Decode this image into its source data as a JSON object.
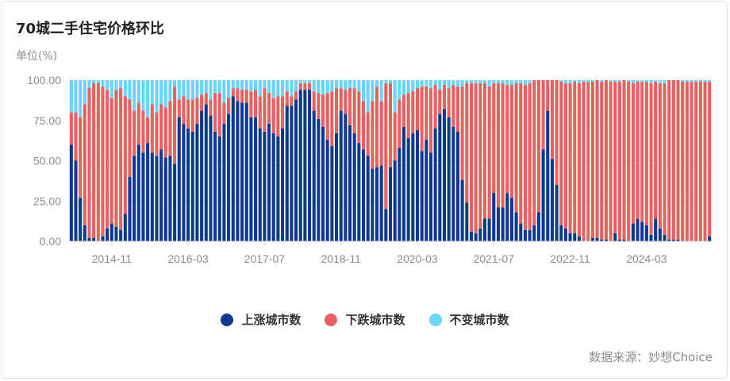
{
  "title": "70城二手住宅价格环比",
  "unit_label": "单位(%)",
  "source": "数据来源：妙想Choice",
  "legend": [
    {
      "label": "上涨城市数",
      "color": "#0d3a8f"
    },
    {
      "label": "下跌城市数",
      "color": "#e8605f"
    },
    {
      "label": "不变城市数",
      "color": "#68d5fb"
    }
  ],
  "chart_data": {
    "type": "bar",
    "stacked": true,
    "title": "70城二手住宅价格环比",
    "ylabel": "单位(%)",
    "ylim": [
      0,
      100
    ],
    "yticks": [
      "0.00",
      "25.00",
      "50.00",
      "75.00",
      "100.00"
    ],
    "xticks": [
      "2014-11",
      "2016-03",
      "2017-07",
      "2018-11",
      "2020-03",
      "2021-07",
      "2022-11",
      "2024-03"
    ],
    "xticks_index": [
      9,
      26,
      43,
      60,
      77,
      94,
      111,
      128
    ],
    "series": [
      {
        "name": "上涨城市数",
        "color": "#0d3a8f",
        "values": [
          60,
          50,
          27,
          10,
          2,
          2,
          0,
          3,
          8,
          11,
          9,
          7,
          17,
          40,
          53,
          60,
          55,
          61,
          55,
          53,
          57,
          52,
          53,
          48,
          77,
          73,
          70,
          68,
          73,
          81,
          85,
          78,
          68,
          65,
          73,
          79,
          90,
          87,
          86,
          86,
          77,
          77,
          70,
          68,
          73,
          67,
          65,
          70,
          84,
          84,
          88,
          94,
          94,
          94,
          81,
          76,
          71,
          63,
          59,
          67,
          81,
          79,
          72,
          67,
          61,
          57,
          53,
          45,
          46,
          47,
          20,
          46,
          50,
          58,
          71,
          64,
          67,
          69,
          56,
          63,
          55,
          70,
          79,
          82,
          77,
          71,
          68,
          38,
          24,
          6,
          5,
          8,
          14,
          14,
          30,
          21,
          21,
          30,
          27,
          18,
          11,
          7,
          7,
          10,
          18,
          57,
          81,
          51,
          35,
          10,
          8,
          5,
          5,
          3,
          0,
          0,
          2,
          2,
          1,
          1,
          0,
          5,
          1,
          1,
          0,
          11,
          14,
          12,
          10,
          4,
          14,
          8,
          4,
          1,
          1,
          1,
          0,
          0,
          0,
          0,
          0,
          0,
          3
        ]
      },
      {
        "name": "下跌城市数",
        "color": "#e8605f",
        "values": [
          20,
          30,
          50,
          75,
          93,
          96,
          98,
          93,
          86,
          78,
          85,
          88,
          73,
          48,
          28,
          26,
          26,
          16,
          30,
          27,
          28,
          31,
          34,
          48,
          11,
          17,
          18,
          20,
          16,
          10,
          7,
          10,
          24,
          27,
          13,
          10,
          5,
          8,
          8,
          8,
          16,
          17,
          20,
          27,
          19,
          22,
          25,
          20,
          9,
          6,
          5,
          4,
          4,
          4,
          12,
          16,
          20,
          29,
          34,
          28,
          14,
          15,
          23,
          28,
          32,
          30,
          27,
          42,
          50,
          40,
          78,
          52,
          30,
          30,
          20,
          28,
          26,
          26,
          40,
          33,
          40,
          27,
          15,
          15,
          18,
          26,
          28,
          58,
          74,
          92,
          93,
          90,
          84,
          82,
          68,
          77,
          77,
          67,
          70,
          80,
          87,
          90,
          91,
          90,
          82,
          43,
          19,
          49,
          65,
          89,
          90,
          93,
          94,
          95,
          99,
          99,
          97,
          98,
          98,
          99,
          99,
          94,
          98,
          99,
          99,
          87,
          85,
          87,
          89,
          94,
          85,
          90,
          94,
          99,
          99,
          99,
          99,
          99,
          99,
          99,
          99,
          99,
          96
        ]
      }
    ]
  }
}
